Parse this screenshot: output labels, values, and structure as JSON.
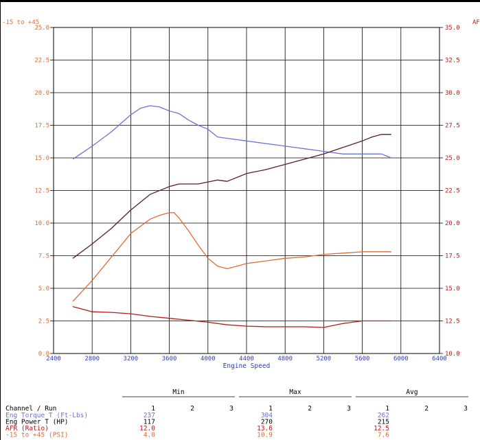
{
  "chart_data": {
    "type": "line",
    "xlabel": "Engine Speed",
    "left_axis_title": "-15 to +45",
    "right_axis_title": "AF",
    "xlim": [
      2400,
      6400
    ],
    "x_ticks": [
      "2400",
      "2800",
      "3200",
      "3600",
      "4000",
      "4400",
      "4800",
      "5200",
      "5600",
      "6000",
      "6400"
    ],
    "left_ylim": [
      0,
      25
    ],
    "left_ticks": [
      "0.0",
      "2.5",
      "5.0",
      "7.5",
      "10.0",
      "12.5",
      "15.0",
      "17.5",
      "20.0",
      "22.5",
      "25.0"
    ],
    "right_ylim": [
      10,
      35
    ],
    "right_ticks": [
      "10.0",
      "12.5",
      "15.0",
      "17.5",
      "20.0",
      "22.5",
      "25.0",
      "27.5",
      "30.0",
      "32.5",
      "35.0"
    ],
    "grid": true,
    "series": [
      {
        "name": "Eng Torque T (Ft-Lbs)",
        "color": "#6a73d6",
        "axis": "left",
        "points": [
          [
            2600,
            14.9
          ],
          [
            2800,
            15.9
          ],
          [
            3000,
            17.0
          ],
          [
            3200,
            18.3
          ],
          [
            3300,
            18.8
          ],
          [
            3400,
            19.0
          ],
          [
            3500,
            18.9
          ],
          [
            3600,
            18.6
          ],
          [
            3700,
            18.4
          ],
          [
            3800,
            17.9
          ],
          [
            3900,
            17.5
          ],
          [
            4000,
            17.2
          ],
          [
            4100,
            16.6
          ],
          [
            4200,
            16.5
          ],
          [
            4400,
            16.3
          ],
          [
            4600,
            16.1
          ],
          [
            4800,
            15.9
          ],
          [
            5000,
            15.7
          ],
          [
            5200,
            15.5
          ],
          [
            5400,
            15.3
          ],
          [
            5600,
            15.3
          ],
          [
            5800,
            15.3
          ],
          [
            5900,
            15.0
          ]
        ]
      },
      {
        "name": "Eng Power T (HP)",
        "color": "#5a1a24",
        "axis": "left",
        "points": [
          [
            2600,
            7.3
          ],
          [
            2800,
            8.4
          ],
          [
            3000,
            9.6
          ],
          [
            3200,
            11.0
          ],
          [
            3400,
            12.2
          ],
          [
            3600,
            12.8
          ],
          [
            3700,
            13.0
          ],
          [
            3900,
            13.0
          ],
          [
            4100,
            13.3
          ],
          [
            4200,
            13.2
          ],
          [
            4400,
            13.8
          ],
          [
            4600,
            14.1
          ],
          [
            4800,
            14.5
          ],
          [
            5000,
            14.9
          ],
          [
            5200,
            15.3
          ],
          [
            5400,
            15.8
          ],
          [
            5600,
            16.3
          ],
          [
            5700,
            16.6
          ],
          [
            5800,
            16.8
          ],
          [
            5900,
            16.8
          ]
        ]
      },
      {
        "name": "AFR (Ratio)",
        "color": "#b81818",
        "axis": "right",
        "points": [
          [
            2600,
            13.6
          ],
          [
            2800,
            13.2
          ],
          [
            3000,
            13.15
          ],
          [
            3200,
            13.05
          ],
          [
            3400,
            12.85
          ],
          [
            3600,
            12.7
          ],
          [
            3800,
            12.55
          ],
          [
            4000,
            12.4
          ],
          [
            4200,
            12.2
          ],
          [
            4400,
            12.1
          ],
          [
            4600,
            12.05
          ],
          [
            4800,
            12.05
          ],
          [
            5000,
            12.05
          ],
          [
            5200,
            12.0
          ],
          [
            5400,
            12.3
          ],
          [
            5600,
            12.5
          ],
          [
            5800,
            12.5
          ],
          [
            5900,
            12.5
          ]
        ]
      },
      {
        "name": "-15 to +45 (PSI)",
        "color": "#e06b35",
        "axis": "left",
        "points": [
          [
            2600,
            4.0
          ],
          [
            2800,
            5.6
          ],
          [
            3000,
            7.4
          ],
          [
            3200,
            9.2
          ],
          [
            3400,
            10.3
          ],
          [
            3500,
            10.6
          ],
          [
            3600,
            10.8
          ],
          [
            3650,
            10.8
          ],
          [
            3700,
            10.4
          ],
          [
            3800,
            9.4
          ],
          [
            3900,
            8.3
          ],
          [
            4000,
            7.3
          ],
          [
            4100,
            6.7
          ],
          [
            4200,
            6.5
          ],
          [
            4300,
            6.7
          ],
          [
            4400,
            6.9
          ],
          [
            4600,
            7.1
          ],
          [
            4800,
            7.3
          ],
          [
            5000,
            7.4
          ],
          [
            5200,
            7.6
          ],
          [
            5400,
            7.7
          ],
          [
            5600,
            7.8
          ],
          [
            5800,
            7.8
          ],
          [
            5900,
            7.8
          ]
        ]
      }
    ]
  },
  "table": {
    "groups": [
      "Min",
      "Max",
      "Avg"
    ],
    "header_label": "Channel / Run",
    "run_labels": [
      "1",
      "2",
      "3"
    ],
    "rows": [
      {
        "name": "Eng Torque T (Ft-Lbs)",
        "color": "#6a73d6",
        "min": "237",
        "max": "304",
        "avg": "262"
      },
      {
        "name": "Eng Power T (HP)",
        "color": "#000000",
        "min": "117",
        "max": "270",
        "avg": "215"
      },
      {
        "name": "AFR (Ratio)",
        "color": "#b81818",
        "min": "12.0",
        "max": "13.6",
        "avg": "12.5"
      },
      {
        "name": "-15 to +45 (PSI)",
        "color": "#e06b35",
        "min": "4.0",
        "max": "10.9",
        "avg": "7.6"
      }
    ]
  }
}
